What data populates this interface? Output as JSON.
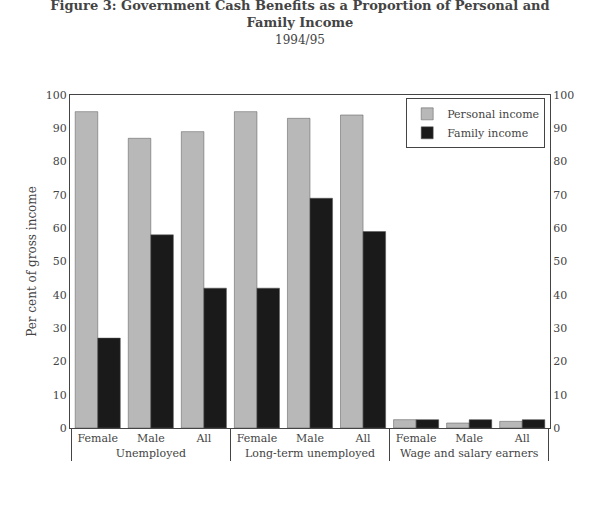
{
  "chart_data": {
    "type": "bar",
    "title": "Figure 3: Government Cash Benefits as a Proportion of Personal and\nFamily Income",
    "subtitle": "1994/95",
    "ylabel": "Per cent of gross income",
    "categories": [
      [
        "Unemployed",
        "Female"
      ],
      [
        "Unemployed",
        "Male"
      ],
      [
        "Unemployed",
        "All"
      ],
      [
        "Long-term unemployed",
        "Female"
      ],
      [
        "Long-term unemployed",
        "Male"
      ],
      [
        "Long-term unemployed",
        "All"
      ],
      [
        "Wage and salary earners",
        "Female"
      ],
      [
        "Wage and salary earners",
        "Male"
      ],
      [
        "Wage and salary earners",
        "All"
      ]
    ],
    "series": [
      {
        "name": "Personal income",
        "color": "#b8b8b8",
        "values": [
          95,
          87,
          89,
          95,
          93,
          94,
          2.5,
          1.5,
          2.0
        ]
      },
      {
        "name": "Family income",
        "color": "#1a1a1a",
        "values": [
          27,
          58,
          42,
          42,
          69,
          59,
          2.5,
          2.5,
          2.5
        ]
      }
    ],
    "ylim": [
      0,
      100
    ],
    "yticks": [
      0,
      10,
      20,
      30,
      40,
      50,
      60,
      70,
      80,
      90,
      100
    ],
    "y2lim": [
      0,
      100
    ],
    "y2ticks": [
      0,
      10,
      20,
      30,
      40,
      50,
      60,
      70,
      80,
      90,
      100
    ],
    "grid": false,
    "legend": "upper right"
  }
}
